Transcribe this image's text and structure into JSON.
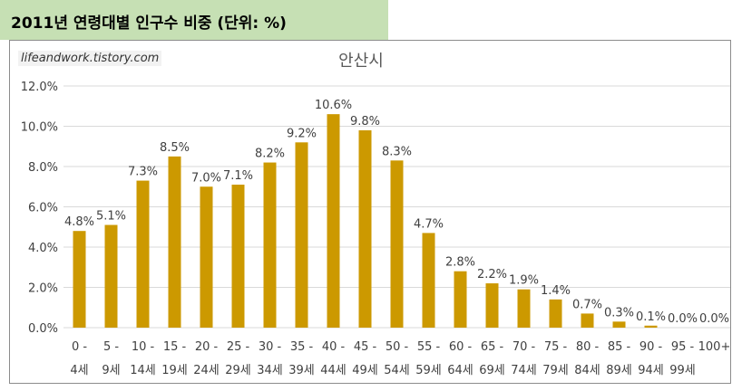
{
  "header": {
    "title": "2011년 연령대별 인구수 비중 (단위: %)"
  },
  "watermark": "lifeandwork.tistory.com",
  "colors": {
    "bar": "#cc9900",
    "grid": "#d9d9d9",
    "header_bg": "#c6e0b4"
  },
  "chart_data": {
    "type": "bar",
    "title": "안산시",
    "categories": [
      [
        "0 -",
        "4세"
      ],
      [
        "5 -",
        "9세"
      ],
      [
        "10 -",
        "14세"
      ],
      [
        "15 -",
        "19세"
      ],
      [
        "20 -",
        "24세"
      ],
      [
        "25 -",
        "29세"
      ],
      [
        "30 -",
        "34세"
      ],
      [
        "35 -",
        "39세"
      ],
      [
        "40 -",
        "44세"
      ],
      [
        "45 -",
        "49세"
      ],
      [
        "50 -",
        "54세"
      ],
      [
        "55 -",
        "59세"
      ],
      [
        "60 -",
        "64세"
      ],
      [
        "65 -",
        "69세"
      ],
      [
        "70 -",
        "74세"
      ],
      [
        "75 -",
        "79세"
      ],
      [
        "80 -",
        "84세"
      ],
      [
        "85 -",
        "89세"
      ],
      [
        "90 -",
        "94세"
      ],
      [
        "95 -",
        "99세"
      ],
      [
        "100+",
        ""
      ]
    ],
    "values": [
      4.8,
      5.1,
      7.3,
      8.5,
      7.0,
      7.1,
      8.2,
      9.2,
      10.6,
      9.8,
      8.3,
      4.7,
      2.8,
      2.2,
      1.9,
      1.4,
      0.7,
      0.3,
      0.1,
      0.0,
      0.0
    ],
    "data_labels": [
      "4.8%",
      "5.1%",
      "7.3%",
      "8.5%",
      "7.0%",
      "7.1%",
      "8.2%",
      "9.2%",
      "10.6%",
      "9.8%",
      "8.3%",
      "4.7%",
      "2.8%",
      "2.2%",
      "1.9%",
      "1.4%",
      "0.7%",
      "0.3%",
      "0.1%",
      "0.0%",
      "0.0%"
    ],
    "yticks": [
      0,
      2,
      4,
      6,
      8,
      10,
      12
    ],
    "ytick_labels": [
      "0.0%",
      "2.0%",
      "4.0%",
      "6.0%",
      "8.0%",
      "10.0%",
      "12.0%"
    ],
    "ylim": [
      0,
      12
    ],
    "grid": true,
    "legend": "none"
  }
}
